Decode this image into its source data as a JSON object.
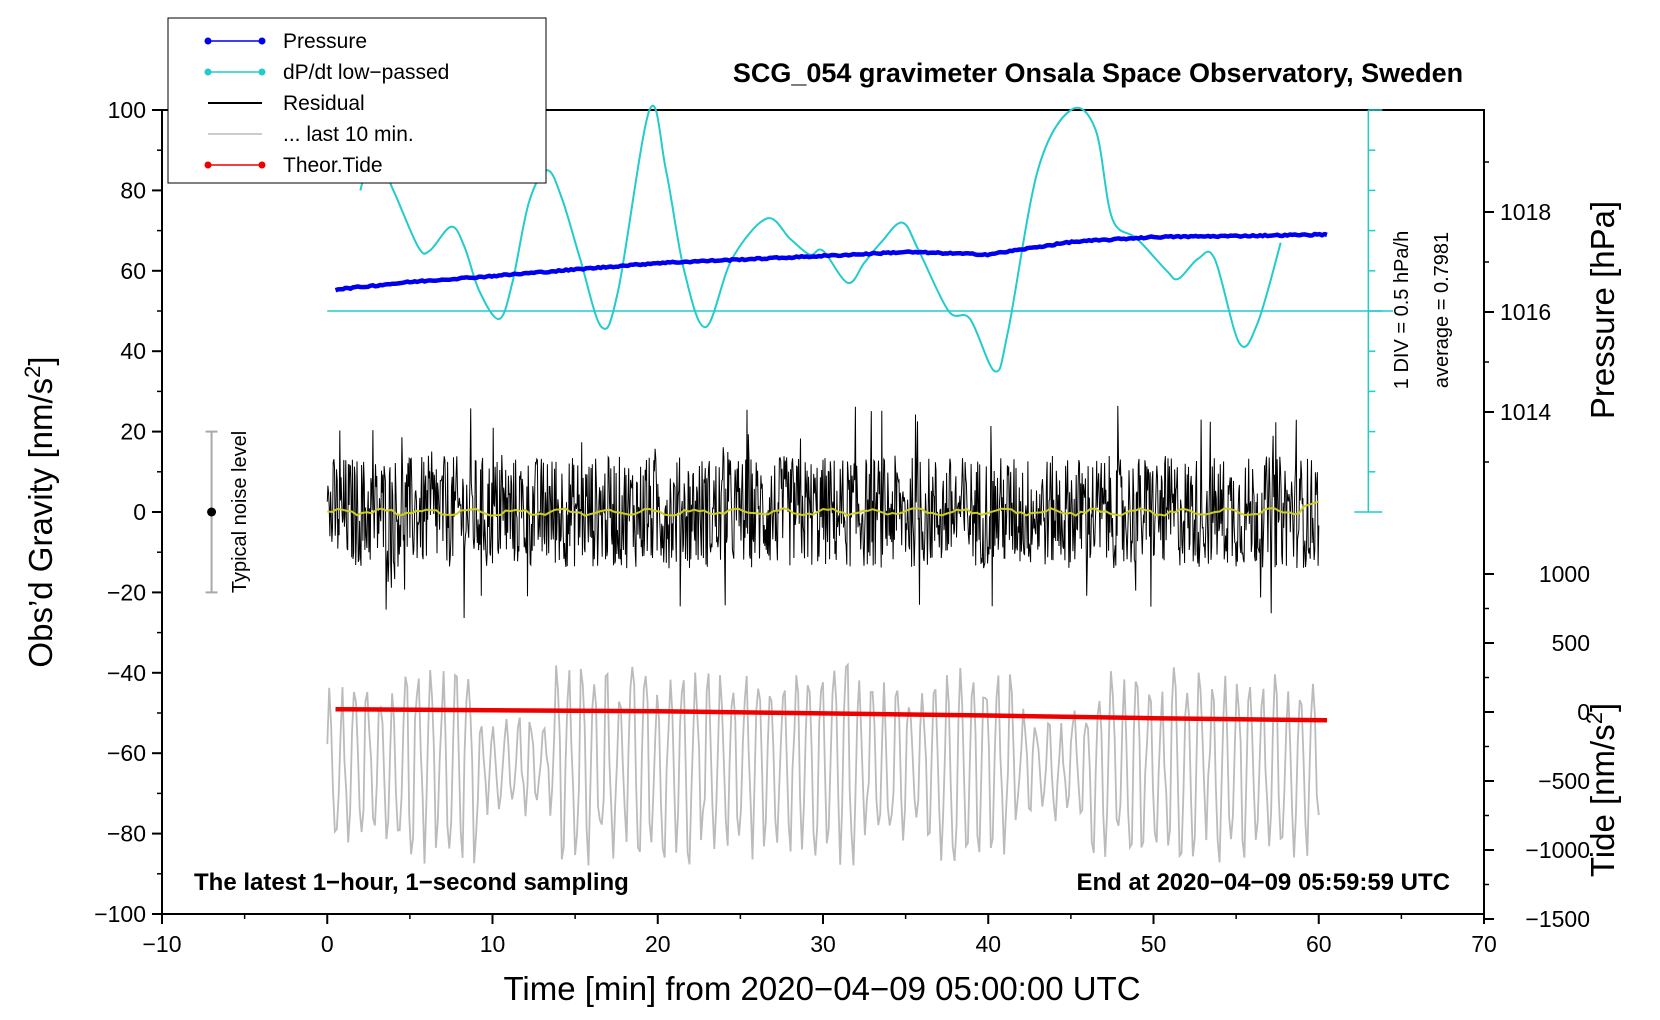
{
  "chart_data": {
    "type": "line",
    "title": "SCG_054 gravimeter Onsala Space Observatory, Sweden",
    "xlabel": "Time [min] from 2020−04−09 05:00:00 UTC",
    "ylabel": "Obs’d Gravity [nm/s",
    "ylabel_sup": "2",
    "ylabel_end": "]",
    "y2label": "Pressure [hPa]",
    "y3label": "Tide [nm/s",
    "y3label_sup": "2",
    "y3label_end": "]",
    "xlim": [
      -10,
      70
    ],
    "ylim": [
      -100,
      100
    ],
    "x_ticks": [
      -10,
      0,
      10,
      20,
      30,
      40,
      50,
      60,
      70
    ],
    "x_tick_labels": [
      "−10",
      "0",
      "10",
      "20",
      "30",
      "40",
      "50",
      "60",
      "70"
    ],
    "y_ticks": [
      -100,
      -80,
      -60,
      -40,
      -20,
      0,
      20,
      40,
      60,
      80,
      100
    ],
    "y_tick_labels": [
      "−100",
      "−80",
      "−60",
      "−40",
      "−20",
      "0",
      "20",
      "40",
      "60",
      "80",
      "100"
    ],
    "pressure_ticks": [
      1014,
      1016,
      1018
    ],
    "pressure_tick_labels": [
      "1014",
      "1016",
      "1018"
    ],
    "tide_ticks": [
      1000,
      500,
      0,
      -500,
      -1000,
      -1500
    ],
    "tide_tick_labels": [
      "1000",
      "500",
      "0",
      "−500",
      "−1000",
      "−1500"
    ],
    "legend": [
      {
        "label": "Pressure",
        "color": "#0000ee",
        "marker": true
      },
      {
        "label": "dP/dt low−passed",
        "color": "#22cccc",
        "marker": true
      },
      {
        "label": "Residual",
        "color": "#000000",
        "marker": false
      },
      {
        "label": "... last 10 min.",
        "color": "#bbbbbb",
        "marker": false
      },
      {
        "label": "Theor.Tide",
        "color": "#ee0000",
        "marker": true
      }
    ],
    "legend_position": "top-left",
    "annotations": {
      "bottom_left": "The latest 1−hour, 1−second sampling",
      "bottom_right": "End at 2020−04−09 05:59:59 UTC",
      "noise_label": "Typical noise level",
      "div_label": "1 DIV = 0.5 hPa/h",
      "average_label": "average = 0.7981"
    },
    "noise_bar": {
      "x": -7,
      "y_center": 0,
      "y_low": -20,
      "y_high": 20
    },
    "series": {
      "pressure": {
        "name": "Pressure",
        "color": "#0000ee",
        "x_min": [
          0.5,
          5,
          10,
          15,
          20,
          25,
          30,
          35,
          40,
          45,
          50,
          55,
          60.5
        ],
        "values_hpa": [
          1016.45,
          1016.6,
          1016.72,
          1016.85,
          1016.98,
          1017.05,
          1017.12,
          1017.2,
          1017.15,
          1017.4,
          1017.5,
          1017.52,
          1017.55
        ]
      },
      "dpdt": {
        "name": "dP/dt low−passed",
        "color": "#22cccc",
        "x_min": [
          2,
          2.8,
          4,
          5.5,
          6.2,
          7.5,
          8.3,
          9.2,
          10.4,
          11.2,
          12.2,
          13.3,
          14.2,
          15.3,
          16.6,
          17.6,
          19.5,
          20.5,
          21.6,
          22.9,
          24.5,
          26.6,
          28,
          29.2,
          30,
          31.5,
          32.5,
          33.5,
          34.8,
          35.8,
          37.6,
          38.9,
          40.4,
          41.2,
          43,
          45,
          46.5,
          47.5,
          49,
          50.8,
          51.5,
          52.7,
          53.7,
          55.2,
          56.3,
          57.7
        ],
        "values": [
          80,
          90,
          80,
          66,
          65,
          71,
          66,
          55,
          48,
          57,
          77,
          85,
          78,
          63,
          46,
          55,
          100,
          85,
          60,
          46,
          63,
          73,
          68,
          64,
          65,
          57,
          62,
          67,
          72,
          65,
          50,
          48,
          35,
          45,
          85,
          100,
          95,
          73,
          68,
          60,
          58,
          63,
          63,
          42,
          47,
          67
        ]
      },
      "residual": {
        "name": "Residual",
        "color": "#000000",
        "x_range": [
          0,
          60
        ],
        "amplitude_typ": 14,
        "max": 33,
        "min": -32,
        "smoothed_color": "#cccc22"
      },
      "last10": {
        "name": "... last 10 min.",
        "color": "#bbbbbb",
        "x_range": [
          0,
          60
        ],
        "y_center": -63,
        "max": -32,
        "min": -95
      },
      "tide": {
        "name": "Theor.Tide",
        "color": "#ee0000",
        "x_min": [
          0.5,
          10,
          20,
          30,
          40,
          50,
          60.5
        ],
        "values_nms2": [
          20,
          12,
          5,
          -10,
          -25,
          -45,
          -60
        ]
      },
      "dpdt_zero_line": {
        "value": 50,
        "color": "#22cccc"
      }
    }
  }
}
